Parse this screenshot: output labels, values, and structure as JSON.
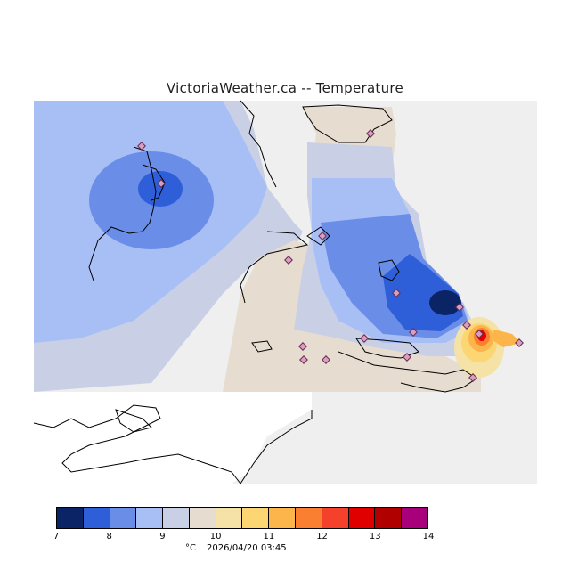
{
  "title": "VictoriaWeather.ca -- Temperature",
  "legend": {
    "colors": [
      "#0b2466",
      "#2f5fd8",
      "#6a8ee8",
      "#a8bff6",
      "#c9d0e6",
      "#e6ddd0",
      "#f4e2a6",
      "#fcd672",
      "#fcb54a",
      "#fb7f30",
      "#f5412b",
      "#e00000",
      "#b00000",
      "#a8007a"
    ],
    "ticks": [
      "7",
      "8",
      "9",
      "10",
      "11",
      "12",
      "13",
      "14"
    ],
    "unit": "°C"
  },
  "timestamp": "2026/04/20 03:45",
  "map_colors": {
    "background": "#efefef",
    "land_outline": "#000000",
    "station": "#d8a0c0"
  }
}
